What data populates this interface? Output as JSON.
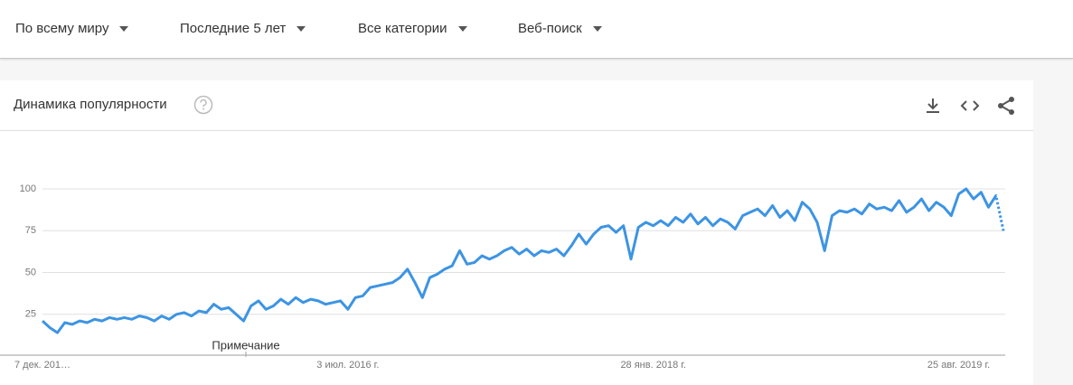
{
  "filters": [
    "По всему миру",
    "Последние 5 лет",
    "Все категории",
    "Веб-поиск"
  ],
  "card": {
    "title": "Динамика популярности"
  },
  "chart_data": {
    "type": "line",
    "categories": [
      "7 дек. 201…",
      null,
      null,
      null,
      null,
      null,
      null,
      null,
      null,
      null,
      null,
      null,
      null,
      null,
      null,
      null,
      null,
      null,
      null,
      null,
      null,
      null,
      null,
      null,
      null,
      null,
      null,
      null,
      null,
      null,
      null,
      null,
      null,
      null,
      null,
      null,
      null,
      null,
      null,
      null,
      null,
      "3 июл. 2016 г.",
      null,
      null,
      null,
      null,
      null,
      null,
      null,
      null,
      null,
      null,
      null,
      null,
      null,
      null,
      null,
      null,
      null,
      null,
      null,
      null,
      null,
      null,
      null,
      null,
      null,
      null,
      null,
      null,
      null,
      null,
      null,
      null,
      null,
      null,
      null,
      null,
      null,
      null,
      null,
      null,
      "28 янв. 2018 г.",
      null,
      null,
      null,
      null,
      null,
      null,
      null,
      null,
      null,
      null,
      null,
      null,
      null,
      null,
      null,
      null,
      null,
      null,
      null,
      null,
      null,
      null,
      null,
      null,
      null,
      null,
      null,
      null,
      null,
      null,
      null,
      null,
      null,
      null,
      null,
      null,
      null,
      null,
      null,
      null,
      "25 авг. 2019 г.",
      null,
      null,
      null,
      null,
      null,
      null
    ],
    "series": [
      {
        "color": "#3d94e3",
        "values": [
          21,
          17,
          14,
          20,
          19,
          21,
          20,
          22,
          21,
          23,
          22,
          23,
          22,
          24,
          23,
          21,
          24,
          22,
          25,
          26,
          24,
          27,
          26,
          31,
          28,
          29,
          25,
          21,
          30,
          33,
          28,
          30,
          34,
          31,
          35,
          32,
          34,
          33,
          31,
          32,
          33,
          28,
          35,
          36,
          41,
          42,
          43,
          44,
          47,
          52,
          44,
          35,
          47,
          49,
          52,
          54,
          63,
          55,
          56,
          60,
          58,
          60,
          63,
          65,
          61,
          64,
          60,
          63,
          62,
          64,
          60,
          66,
          73,
          67,
          73,
          77,
          78,
          74,
          78,
          58,
          77,
          80,
          78,
          81,
          78,
          83,
          80,
          85,
          79,
          83,
          78,
          82,
          80,
          76,
          84,
          86,
          88,
          84,
          90,
          83,
          87,
          81,
          92,
          88,
          80,
          63,
          84,
          87,
          86,
          88,
          85,
          91,
          88,
          89,
          87,
          93,
          86,
          89,
          94,
          87,
          92,
          89,
          84,
          97,
          100,
          94,
          98,
          89,
          96,
          75
        ]
      }
    ],
    "partial_last_point": true,
    "annotations": [
      "Примечание"
    ],
    "ylim": [
      0,
      100
    ],
    "yticks": [
      25,
      50,
      75,
      100
    ],
    "grid": true
  }
}
